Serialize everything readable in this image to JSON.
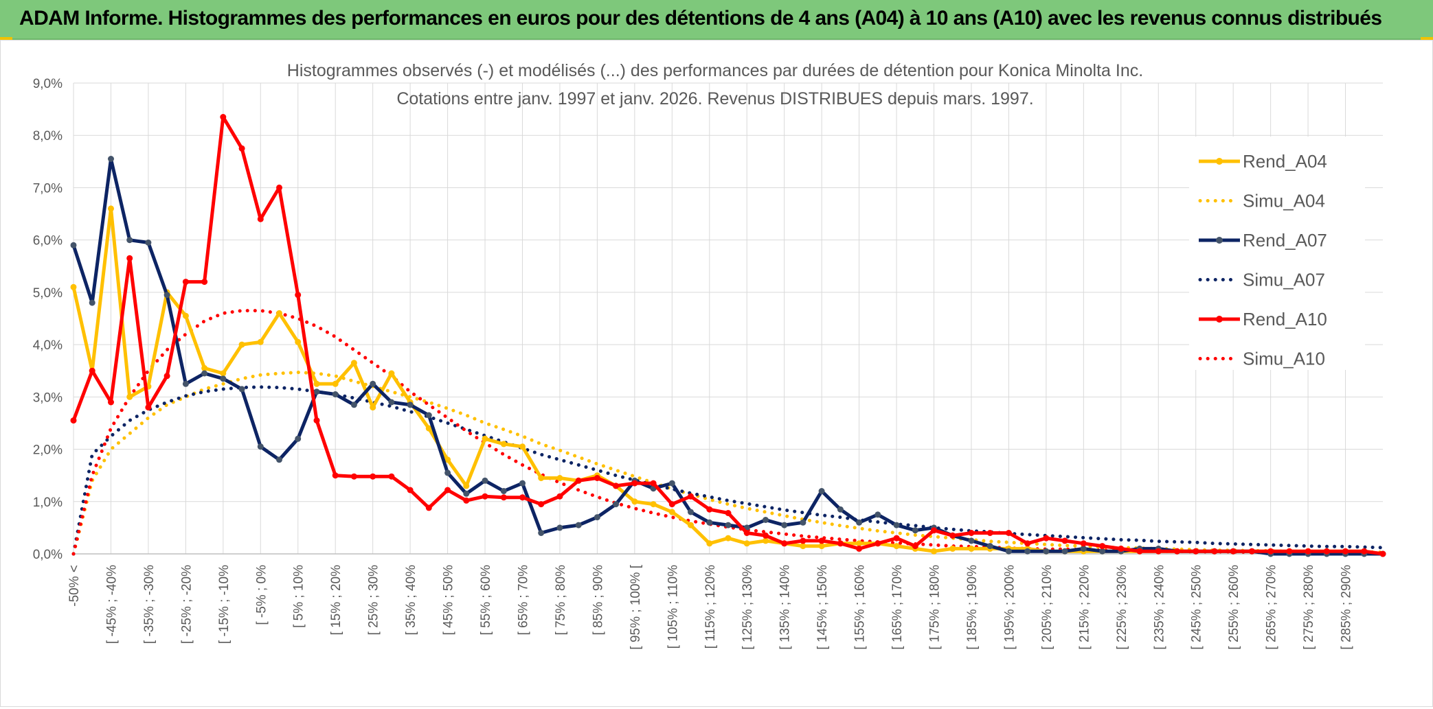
{
  "header": {
    "title": "ADAM Informe. Histogrammes des performances en euros pour des détentions de 4 ans (A04) à 10 ans (A10) avec les revenus connus distribués"
  },
  "chart_data": {
    "type": "line",
    "title_line1": "Histogrammes observés (-) et modélisés (...) des performances par durées de détention pour Konica Minolta Inc.",
    "title_line2": "Cotations entre janv. 1997 et janv. 2026. Revenus DISTRIBUES depuis mars. 1997.",
    "ylim": [
      0,
      9
    ],
    "y_ticks": [
      "0,0%",
      "1,0%",
      "2,0%",
      "3,0%",
      "4,0%",
      "5,0%",
      "6,0%",
      "7,0%",
      "8,0%",
      "9,0%"
    ],
    "grid": true,
    "legend_position": "right",
    "x_labels": [
      "-50% <",
      "[ -45% ; -40%",
      "[ -35% ; -30%",
      "[ -25% ; -20%",
      "[ -15% ; -10%",
      "[ -5% ; 0%",
      "[ 5% ; 10%",
      "[ 15% ; 20%",
      "[ 25% ; 30%",
      "[ 35% ; 40%",
      "[ 45% ; 50%",
      "[ 55% ; 60%",
      "[ 65% ; 70%",
      "[ 75% ; 80%",
      "[ 85% ; 90%",
      "[ 95% ; 100% [",
      "[ 105% ; 110%",
      "[ 115% ; 120%",
      "[ 125% ; 130%",
      "[ 135% ; 140%",
      "[ 145% ; 150%",
      "[ 155% ; 160%",
      "[ 165% ; 170%",
      "[ 175% ; 180%",
      "[ 185% ; 190%",
      "[ 195% ; 200%",
      "[ 205% ; 210%",
      "[ 215% ; 220%",
      "[ 225% ; 230%",
      "[ 235% ; 240%",
      "[ 245% ; 250%",
      "[ 255% ; 260%",
      "[ 265% ; 270%",
      "[ 275% ; 280%",
      "[ 285% ; 290%"
    ],
    "series": [
      {
        "name": "Rend_A04",
        "style": "solid",
        "color": "#ffc000",
        "values": [
          5.1,
          3.5,
          6.6,
          3.0,
          3.2,
          5.0,
          4.55,
          3.55,
          3.45,
          4.0,
          4.05,
          4.6,
          4.05,
          3.25,
          3.25,
          3.65,
          2.8,
          3.45,
          2.9,
          2.4,
          1.8,
          1.3,
          2.2,
          2.1,
          2.05,
          1.45,
          1.45,
          1.4,
          1.5,
          1.3,
          1.0,
          0.95,
          0.8,
          0.55,
          0.2,
          0.3,
          0.2,
          0.25,
          0.2,
          0.15,
          0.15,
          0.2,
          0.2,
          0.2,
          0.15,
          0.1,
          0.05,
          0.1,
          0.1,
          0.1,
          0.1,
          0.1,
          0.05,
          0.05,
          0.05,
          0.05,
          0.05,
          0.05,
          0.05,
          0.05,
          0.05,
          0.05,
          0.05,
          0.05,
          0.05,
          0.05,
          0.05,
          0.05,
          0.05,
          0.05,
          0.0
        ]
      },
      {
        "name": "Simu_A04",
        "style": "dotted",
        "color": "#ffc000",
        "values": [
          0.0,
          1.4,
          2.0,
          2.3,
          2.6,
          2.85,
          3.0,
          3.15,
          3.25,
          3.35,
          3.42,
          3.45,
          3.47,
          3.45,
          3.4,
          3.3,
          3.2,
          3.1,
          3.0,
          2.9,
          2.78,
          2.65,
          2.5,
          2.38,
          2.25,
          2.1,
          1.98,
          1.85,
          1.72,
          1.6,
          1.48,
          1.36,
          1.24,
          1.14,
          1.04,
          0.95,
          0.87,
          0.8,
          0.73,
          0.66,
          0.6,
          0.54,
          0.49,
          0.44,
          0.4,
          0.36,
          0.33,
          0.3,
          0.27,
          0.24,
          0.22,
          0.2,
          0.18,
          0.16,
          0.15,
          0.13,
          0.12,
          0.11,
          0.1,
          0.09,
          0.08,
          0.07,
          0.07,
          0.06,
          0.06,
          0.05,
          0.05,
          0.04,
          0.04,
          0.04,
          0.03
        ]
      },
      {
        "name": "Rend_A07",
        "style": "solid",
        "color": "#0d2464",
        "values": [
          5.9,
          4.8,
          7.55,
          6.0,
          5.95,
          4.95,
          3.25,
          3.45,
          3.35,
          3.15,
          2.05,
          1.8,
          2.2,
          3.1,
          3.05,
          2.85,
          3.25,
          2.9,
          2.85,
          2.65,
          1.55,
          1.15,
          1.4,
          1.2,
          1.35,
          0.4,
          0.5,
          0.55,
          0.7,
          0.95,
          1.4,
          1.25,
          1.35,
          0.8,
          0.6,
          0.55,
          0.5,
          0.65,
          0.55,
          0.6,
          1.2,
          0.85,
          0.6,
          0.75,
          0.55,
          0.45,
          0.5,
          0.35,
          0.25,
          0.15,
          0.05,
          0.05,
          0.05,
          0.05,
          0.1,
          0.05,
          0.05,
          0.1,
          0.1,
          0.05,
          0.05,
          0.05,
          0.05,
          0.05,
          0.0,
          0.0,
          0.0,
          0.0,
          0.0,
          0.0,
          0.0
        ]
      },
      {
        "name": "Simu_A07",
        "style": "dotted",
        "color": "#0d2464",
        "values": [
          0.0,
          1.9,
          2.25,
          2.55,
          2.75,
          2.9,
          3.02,
          3.1,
          3.15,
          3.18,
          3.19,
          3.18,
          3.15,
          3.1,
          3.05,
          2.98,
          2.9,
          2.82,
          2.72,
          2.62,
          2.5,
          2.38,
          2.26,
          2.14,
          2.02,
          1.9,
          1.8,
          1.7,
          1.6,
          1.5,
          1.41,
          1.32,
          1.24,
          1.16,
          1.09,
          1.02,
          0.96,
          0.9,
          0.84,
          0.79,
          0.74,
          0.7,
          0.65,
          0.61,
          0.57,
          0.54,
          0.5,
          0.47,
          0.44,
          0.42,
          0.39,
          0.37,
          0.35,
          0.33,
          0.31,
          0.29,
          0.27,
          0.26,
          0.24,
          0.23,
          0.22,
          0.2,
          0.19,
          0.18,
          0.17,
          0.16,
          0.15,
          0.14,
          0.14,
          0.13,
          0.12
        ]
      },
      {
        "name": "Rend_A10",
        "style": "solid",
        "color": "#ff0000",
        "values": [
          2.55,
          3.5,
          2.9,
          5.65,
          2.8,
          3.4,
          5.2,
          5.2,
          8.35,
          7.75,
          6.4,
          7.0,
          4.95,
          2.55,
          1.5,
          1.48,
          1.48,
          1.48,
          1.22,
          0.88,
          1.22,
          1.02,
          1.1,
          1.08,
          1.08,
          0.95,
          1.1,
          1.4,
          1.45,
          1.3,
          1.35,
          1.35,
          0.95,
          1.1,
          0.85,
          0.78,
          0.4,
          0.35,
          0.2,
          0.25,
          0.25,
          0.2,
          0.1,
          0.2,
          0.3,
          0.15,
          0.45,
          0.35,
          0.4,
          0.4,
          0.4,
          0.2,
          0.3,
          0.25,
          0.2,
          0.15,
          0.1,
          0.05,
          0.05,
          0.05,
          0.05,
          0.05,
          0.05,
          0.05,
          0.05,
          0.05,
          0.05,
          0.05,
          0.05,
          0.05,
          0.0
        ]
      },
      {
        "name": "Simu_A10",
        "style": "dotted",
        "color": "#ff0000",
        "values": [
          0.0,
          1.5,
          2.4,
          3.0,
          3.5,
          3.9,
          4.2,
          4.45,
          4.6,
          4.65,
          4.65,
          4.6,
          4.5,
          4.35,
          4.15,
          3.9,
          3.65,
          3.4,
          3.1,
          2.85,
          2.6,
          2.35,
          2.12,
          1.9,
          1.7,
          1.52,
          1.36,
          1.22,
          1.09,
          0.97,
          0.87,
          0.78,
          0.7,
          0.63,
          0.57,
          0.51,
          0.46,
          0.42,
          0.38,
          0.34,
          0.31,
          0.28,
          0.25,
          0.23,
          0.21,
          0.19,
          0.17,
          0.15,
          0.14,
          0.13,
          0.11,
          0.1,
          0.09,
          0.09,
          0.08,
          0.07,
          0.06,
          0.06,
          0.05,
          0.05,
          0.04,
          0.04,
          0.04,
          0.03,
          0.03,
          0.03,
          0.03,
          0.02,
          0.02,
          0.02,
          0.02
        ]
      }
    ]
  }
}
